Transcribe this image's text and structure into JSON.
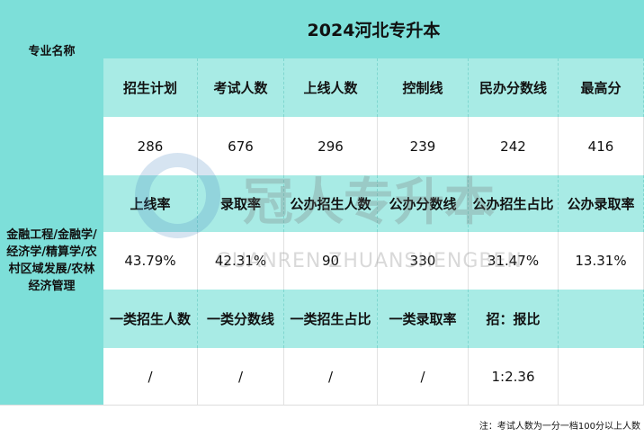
{
  "title": "2024河北专升本",
  "corner_label": "专业名称",
  "major": "金融工程/金融学/经济学/精算学/农村区域发展/农林经济管理",
  "rows": [
    {
      "labels": [
        "招生计划",
        "考试人数",
        "上线人数",
        "控制线",
        "民办分数线",
        "最高分"
      ],
      "values": [
        "286",
        "676",
        "296",
        "239",
        "242",
        "416"
      ]
    },
    {
      "labels": [
        "上线率",
        "录取率",
        "公办招生人数",
        "公办分数线",
        "公办招生占比",
        "公办录取率"
      ],
      "values": [
        "43.79%",
        "42.31%",
        "90",
        "330",
        "31.47%",
        "13.31%"
      ]
    },
    {
      "labels": [
        "一类招生人数",
        "一类分数线",
        "一类招生占比",
        "一类录取率",
        "招：报比",
        ""
      ],
      "values": [
        "/",
        "/",
        "/",
        "/",
        "1:2.36",
        ""
      ]
    }
  ],
  "footnote": "注：考试人数为一分一档100分以上人数",
  "watermark": {
    "cn": "冠人专升本",
    "en": "GUANREN ZHUANSHENGBEN"
  },
  "colors": {
    "header": "#7ddfd9",
    "label_row": "#a8ebe5"
  }
}
